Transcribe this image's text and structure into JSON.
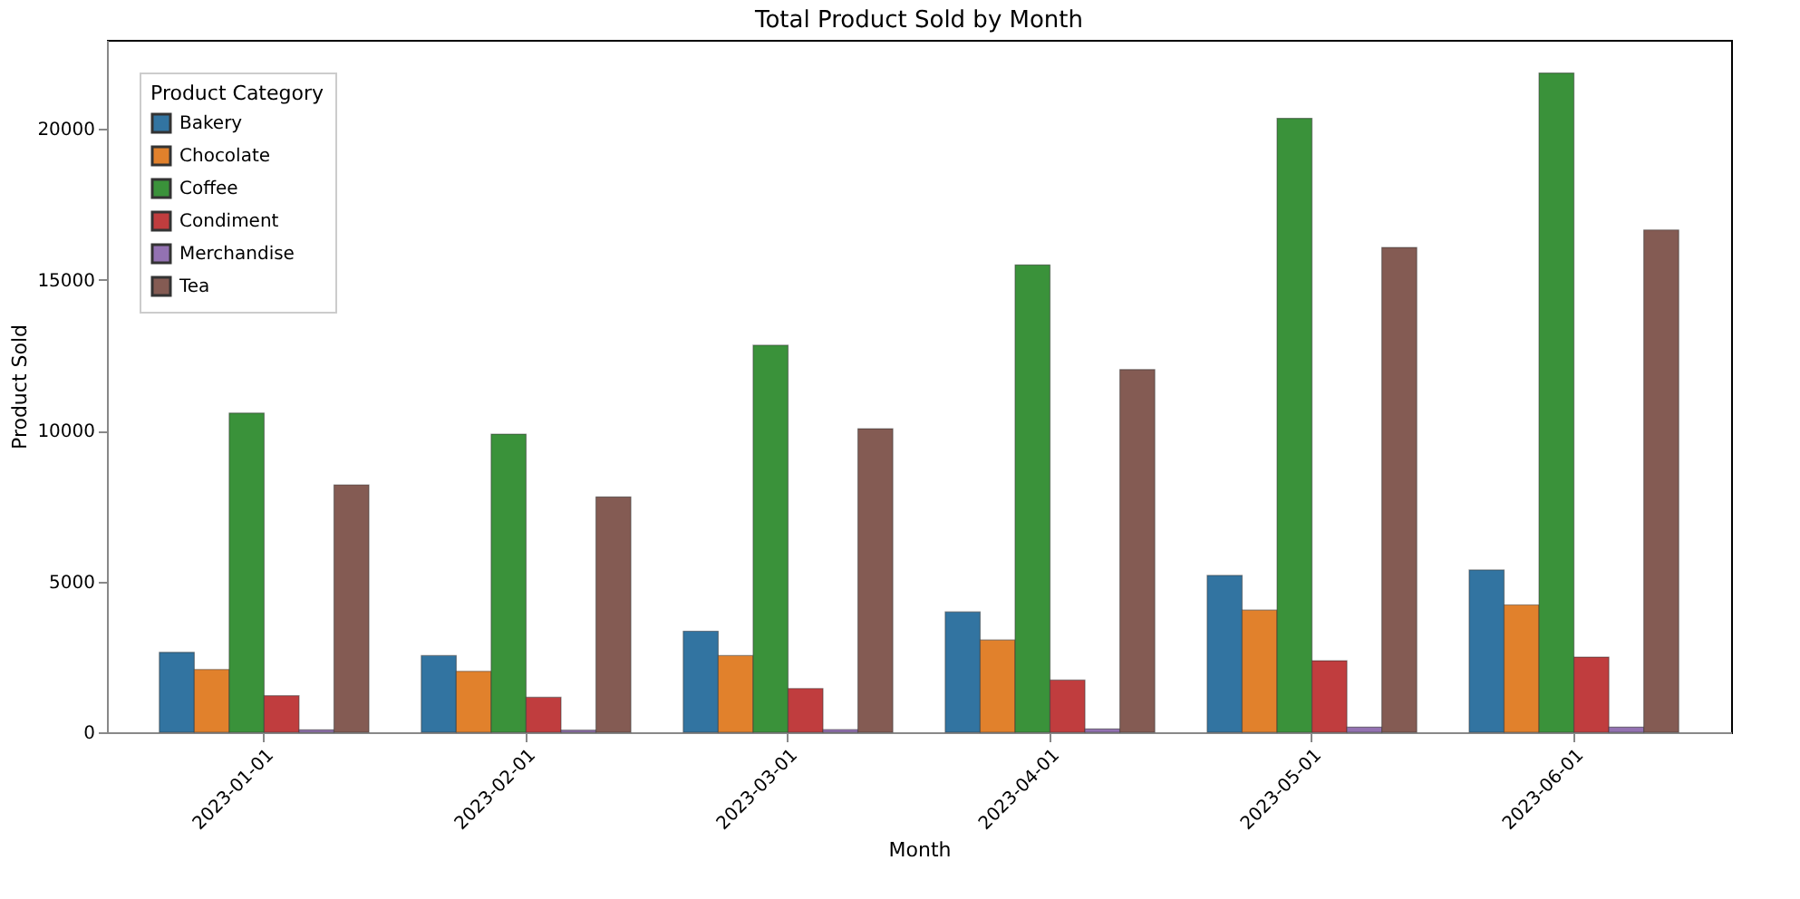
{
  "chart_data": {
    "type": "bar",
    "title": "Total Product Sold by Month",
    "xlabel": "Month",
    "ylabel": "Product Sold",
    "legend_title": "Product Category",
    "categories": [
      "2023-01-01",
      "2023-02-01",
      "2023-03-01",
      "2023-04-01",
      "2023-05-01",
      "2023-06-01"
    ],
    "series": [
      {
        "name": "Bakery",
        "color": "#3274a1",
        "values": [
          2650,
          2540,
          3350,
          3990,
          5200,
          5380
        ]
      },
      {
        "name": "Chocolate",
        "color": "#e1812c",
        "values": [
          2080,
          2020,
          2540,
          3060,
          4050,
          4220
        ]
      },
      {
        "name": "Coffee",
        "color": "#3a923a",
        "values": [
          10580,
          9880,
          12830,
          15490,
          20350,
          21850
        ]
      },
      {
        "name": "Condiment",
        "color": "#c03d3e",
        "values": [
          1210,
          1160,
          1450,
          1730,
          2370,
          2490
        ]
      },
      {
        "name": "Merchandise",
        "color": "#9372b2",
        "values": [
          80,
          70,
          90,
          110,
          170,
          170
        ]
      },
      {
        "name": "Tea",
        "color": "#845b53",
        "values": [
          8200,
          7800,
          10060,
          12020,
          16070,
          16650
        ]
      }
    ],
    "ylim": [
      0,
      22950
    ],
    "yticks": [
      0,
      5000,
      10000,
      15000,
      20000
    ],
    "grid": false,
    "legend": "top left"
  }
}
